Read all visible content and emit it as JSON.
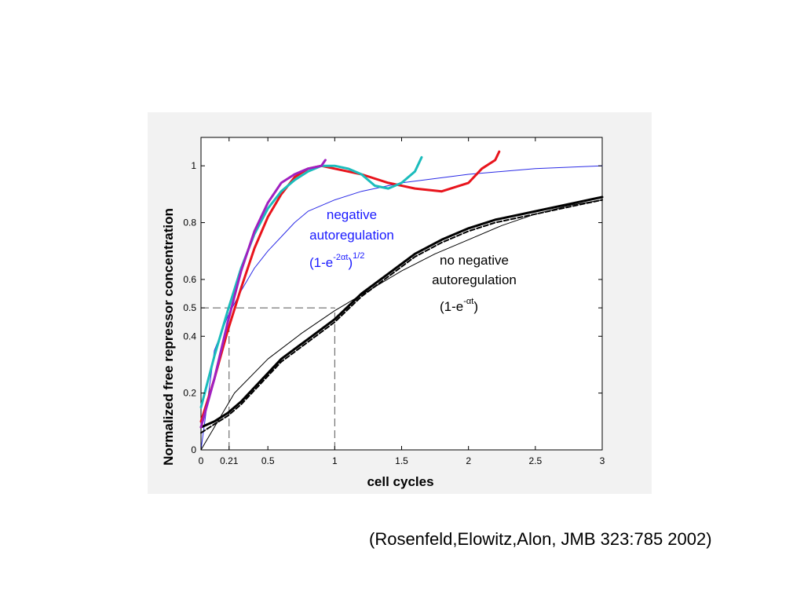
{
  "citation": "(Rosenfeld,Elowitz,Alon, JMB 323:785 2002)",
  "chart_data": {
    "type": "line",
    "xlabel": "cell cycles",
    "ylabel": "Normalized free repressor concentration",
    "xlim": [
      0,
      3
    ],
    "ylim": [
      0,
      1.1
    ],
    "x_ticks": [
      0,
      0.21,
      0.5,
      1,
      1.5,
      2,
      2.5,
      3
    ],
    "x_tick_labels": [
      "0",
      "0.21",
      "0.5",
      "1",
      "1.5",
      "2",
      "2.5",
      "3"
    ],
    "y_ticks": [
      0,
      0.2,
      0.4,
      0.5,
      0.6,
      0.8,
      1
    ],
    "y_tick_labels": [
      "0",
      "0.2",
      "0.4",
      "0.5",
      "0.6",
      "0.8",
      "1"
    ],
    "grid": false,
    "reference_lines": [
      {
        "kind": "horizontal",
        "y": 0.5,
        "x_from": 0,
        "x_to": 1
      },
      {
        "kind": "vertical",
        "x": 0.21,
        "y_from": 0,
        "y_to": 0.5
      },
      {
        "kind": "vertical",
        "x": 1,
        "y_from": 0,
        "y_to": 0.5
      }
    ],
    "annotations": {
      "negative": {
        "line1": "negative",
        "line2": "autoregulation",
        "formula_base": "(1-e",
        "formula_exp": "-2αt",
        "formula_close": ")",
        "formula_power": "1/2",
        "color": "#1a1aff"
      },
      "no_negative": {
        "line1": "no negative",
        "line2": "autoregulation",
        "formula_base": "(1-e",
        "formula_exp": "-αt",
        "formula_close": ")",
        "color": "#000000"
      }
    },
    "series": [
      {
        "role": "model-negative",
        "color": "#2a2ae6",
        "width": 1,
        "x": [
          0,
          0.1,
          0.2,
          0.3,
          0.4,
          0.5,
          0.6,
          0.7,
          0.8,
          1.0,
          1.2,
          1.5,
          2.0,
          2.5,
          3.0
        ],
        "y": [
          0,
          0.35,
          0.47,
          0.56,
          0.64,
          0.7,
          0.75,
          0.8,
          0.84,
          0.88,
          0.91,
          0.94,
          0.97,
          0.99,
          1.0
        ]
      },
      {
        "role": "model-no-negative",
        "color": "#000000",
        "width": 1,
        "x": [
          0,
          0.25,
          0.5,
          0.75,
          1.0,
          1.25,
          1.5,
          1.75,
          2.0,
          2.25,
          2.5,
          2.75,
          3.0
        ],
        "y": [
          0,
          0.2,
          0.32,
          0.41,
          0.49,
          0.56,
          0.63,
          0.69,
          0.74,
          0.79,
          0.83,
          0.86,
          0.88
        ]
      },
      {
        "role": "data-no-negative-1",
        "color": "#000000",
        "width": 3,
        "x": [
          0,
          0.1,
          0.2,
          0.3,
          0.4,
          0.5,
          0.6,
          0.8,
          1.0,
          1.2,
          1.4,
          1.6,
          1.8,
          2.0,
          2.2,
          2.5,
          2.8,
          3.0
        ],
        "y": [
          0.08,
          0.1,
          0.13,
          0.17,
          0.22,
          0.27,
          0.32,
          0.39,
          0.46,
          0.55,
          0.62,
          0.69,
          0.74,
          0.78,
          0.81,
          0.84,
          0.87,
          0.89
        ]
      },
      {
        "role": "data-no-negative-2",
        "color": "#000000",
        "width": 2,
        "dash": "6,3",
        "x": [
          0,
          0.1,
          0.2,
          0.3,
          0.4,
          0.5,
          0.6,
          0.8,
          1.0,
          1.2,
          1.4,
          1.6,
          1.8,
          2.0,
          2.2,
          2.5,
          2.8,
          3.0
        ],
        "y": [
          0.06,
          0.09,
          0.12,
          0.16,
          0.21,
          0.26,
          0.31,
          0.38,
          0.45,
          0.54,
          0.61,
          0.68,
          0.73,
          0.77,
          0.8,
          0.83,
          0.86,
          0.88
        ]
      },
      {
        "role": "data-negative-red",
        "color": "#e8141c",
        "width": 3,
        "x": [
          0,
          0.1,
          0.2,
          0.3,
          0.4,
          0.5,
          0.6,
          0.7,
          0.8,
          0.9,
          1.0,
          1.2,
          1.4,
          1.6,
          1.8,
          2.0,
          2.1,
          2.2,
          2.23
        ],
        "y": [
          0.1,
          0.25,
          0.42,
          0.57,
          0.71,
          0.82,
          0.9,
          0.96,
          0.99,
          1.0,
          0.99,
          0.97,
          0.94,
          0.92,
          0.91,
          0.94,
          0.99,
          1.02,
          1.05
        ]
      },
      {
        "role": "data-negative-cyan",
        "color": "#1bbcbc",
        "width": 3,
        "x": [
          0,
          0.1,
          0.2,
          0.3,
          0.4,
          0.5,
          0.6,
          0.7,
          0.8,
          0.9,
          1.0,
          1.1,
          1.2,
          1.3,
          1.4,
          1.5,
          1.6,
          1.65
        ],
        "y": [
          0.15,
          0.33,
          0.49,
          0.64,
          0.76,
          0.85,
          0.91,
          0.95,
          0.98,
          1.0,
          1.0,
          0.99,
          0.97,
          0.93,
          0.92,
          0.94,
          0.98,
          1.03
        ]
      },
      {
        "role": "data-negative-magenta",
        "color": "#a020c0",
        "width": 3,
        "x": [
          0,
          0.1,
          0.2,
          0.3,
          0.4,
          0.5,
          0.6,
          0.7,
          0.8,
          0.9,
          0.93
        ],
        "y": [
          0.08,
          0.25,
          0.45,
          0.63,
          0.77,
          0.87,
          0.94,
          0.97,
          0.99,
          1.0,
          1.02
        ]
      }
    ]
  }
}
